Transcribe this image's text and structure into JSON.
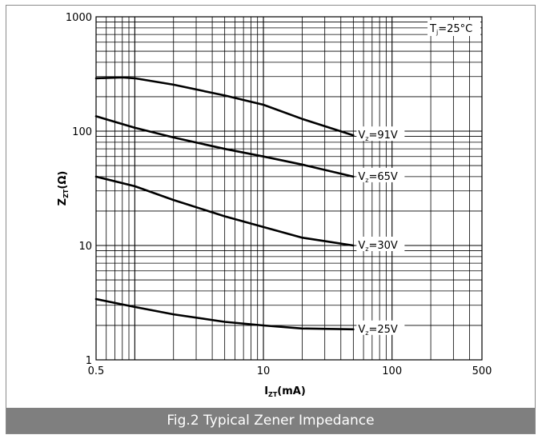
{
  "figure": {
    "caption": "Fig.2 Typical Zener Impedance"
  },
  "chart_data": {
    "type": "line",
    "title": "",
    "xlabel": {
      "main": "I",
      "sub": "ZT",
      "rest": "(mA)"
    },
    "ylabel": {
      "main": "Z",
      "sub": "ZT",
      "rest": "(Ω)"
    },
    "xscale": "log",
    "yscale": "log",
    "xlim": [
      0.5,
      500
    ],
    "ylim": [
      1,
      1000
    ],
    "grid": true,
    "x_tick_labels": [
      {
        "value": 0.5,
        "label": "0.5"
      },
      {
        "value": 10,
        "label": "10"
      },
      {
        "value": 100,
        "label": "100"
      },
      {
        "value": 500,
        "label": "500"
      }
    ],
    "y_tick_labels": [
      {
        "value": 1,
        "label": "1"
      },
      {
        "value": 10,
        "label": "10"
      },
      {
        "value": 100,
        "label": "100"
      },
      {
        "value": 1000,
        "label": "1000"
      }
    ],
    "annotation": {
      "main": "T",
      "sub": "j",
      "rest": "=25°C"
    },
    "series": [
      {
        "name": "VZ=91V",
        "label": {
          "main": "V",
          "sub": "z",
          "rest": "=91V"
        },
        "x": [
          0.5,
          0.8,
          1.0,
          2.0,
          5.0,
          10,
          20,
          50
        ],
        "y": [
          290,
          295,
          290,
          255,
          205,
          170,
          128,
          92
        ]
      },
      {
        "name": "VZ=65V",
        "label": {
          "main": "V",
          "sub": "z",
          "rest": "=65V"
        },
        "x": [
          0.5,
          1.0,
          2.0,
          5.0,
          10,
          20,
          50
        ],
        "y": [
          135,
          107,
          88,
          70,
          60,
          51,
          40
        ]
      },
      {
        "name": "VZ=30V",
        "label": {
          "main": "V",
          "sub": "z",
          "rest": "=30V"
        },
        "x": [
          0.5,
          1.0,
          2.0,
          5.0,
          10,
          20,
          50
        ],
        "y": [
          40,
          33,
          25,
          18,
          14.5,
          11.7,
          10
        ]
      },
      {
        "name": "VZ=25V",
        "label": {
          "main": "V",
          "sub": "z",
          "rest": "=25V"
        },
        "x": [
          0.5,
          1.0,
          2.0,
          5.0,
          10,
          20,
          50
        ],
        "y": [
          3.4,
          2.9,
          2.5,
          2.15,
          2.0,
          1.88,
          1.85
        ]
      }
    ]
  }
}
